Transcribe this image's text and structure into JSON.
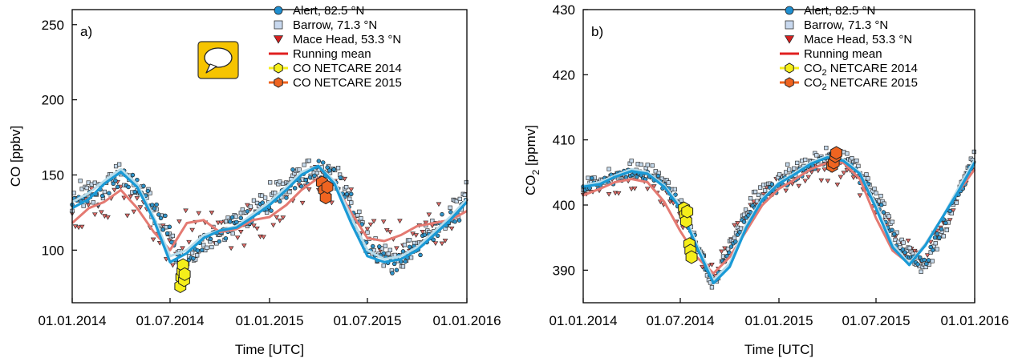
{
  "chart_data": [
    {
      "type": "scatter",
      "panel_label": "a)",
      "xlabel": "Time [UTC]",
      "ylabel": "CO [ppbv]",
      "ylim": [
        65,
        260
      ],
      "yticks": [
        100,
        150,
        200,
        250
      ],
      "xlim": [
        "2014-01-01",
        "2016-01-01"
      ],
      "xticks": [
        "01.01.2014",
        "01.07.2014",
        "01.01.2015",
        "01.07.2015",
        "01.01.2016"
      ],
      "legend_position": "top-right",
      "icon": "speech-bubble-icon",
      "legend": [
        {
          "label": "Alert, 82.5 °N",
          "marker": "circle",
          "color": "#1f8fd0"
        },
        {
          "label": "Barrow, 71.3 °N",
          "marker": "square",
          "color": "#c8d8ee"
        },
        {
          "label": "Mace Head, 53.3 °N",
          "marker": "triangle-down",
          "color": "#d42020"
        },
        {
          "label": "Running mean",
          "marker": "line",
          "color": "#e02020"
        },
        {
          "label": "CO NETCARE 2014",
          "marker": "hexagon",
          "color": "#f5ee1a"
        },
        {
          "label": "CO NETCARE 2015",
          "marker": "hexagon",
          "color": "#ef6420"
        }
      ],
      "series": [
        {
          "name": "Alert, 82.5 °N",
          "dates": [
            "2014-01-01",
            "2014-02-15",
            "2014-04-01",
            "2014-05-15",
            "2014-07-01",
            "2014-07-25",
            "2014-09-01",
            "2014-10-15",
            "2014-12-01",
            "2015-01-15",
            "2015-03-01",
            "2015-04-01",
            "2015-05-15",
            "2015-07-01",
            "2015-08-15",
            "2015-10-01",
            "2015-11-15",
            "2016-01-01"
          ],
          "values": [
            128,
            135,
            150,
            138,
            110,
            85,
            105,
            114,
            124,
            135,
            146,
            155,
            144,
            104,
            90,
            100,
            118,
            128
          ]
        },
        {
          "name": "Barrow, 71.3 °N",
          "dates": [
            "2014-01-01",
            "2014-02-15",
            "2014-04-01",
            "2014-05-15",
            "2014-07-01",
            "2014-07-25",
            "2014-09-01",
            "2014-10-15",
            "2014-12-01",
            "2015-01-15",
            "2015-03-01",
            "2015-04-01",
            "2015-05-15",
            "2015-07-01",
            "2015-08-15",
            "2015-10-01",
            "2015-11-15",
            "2016-01-01"
          ],
          "values": [
            132,
            140,
            152,
            137,
            107,
            88,
            107,
            115,
            126,
            138,
            150,
            156,
            146,
            105,
            92,
            103,
            120,
            135
          ]
        },
        {
          "name": "Mace Head, 53.3 °N",
          "dates": [
            "2014-01-01",
            "2014-02-15",
            "2014-04-01",
            "2014-05-15",
            "2014-07-01",
            "2014-08-01",
            "2014-09-01",
            "2014-10-15",
            "2014-12-01",
            "2015-01-15",
            "2015-03-01",
            "2015-04-01",
            "2015-05-15",
            "2015-07-01",
            "2015-08-15",
            "2015-10-01",
            "2015-11-15",
            "2016-01-01"
          ],
          "values": [
            120,
            130,
            140,
            120,
            100,
            118,
            120,
            112,
            118,
            128,
            140,
            148,
            138,
            112,
            105,
            112,
            118,
            125
          ]
        },
        {
          "name": "Running mean",
          "color": "#e47a72",
          "dates": [
            "2014-01-01",
            "2014-02-01",
            "2014-03-01",
            "2014-04-01",
            "2014-05-01",
            "2014-06-01",
            "2014-07-01",
            "2014-08-01",
            "2014-09-01",
            "2014-10-01",
            "2014-11-01",
            "2014-12-01",
            "2015-01-01",
            "2015-02-01",
            "2015-03-01",
            "2015-04-01",
            "2015-05-01",
            "2015-06-01",
            "2015-07-01",
            "2015-08-01",
            "2015-09-01",
            "2015-10-01",
            "2015-11-01",
            "2015-12-01",
            "2016-01-01"
          ],
          "values": [
            118,
            128,
            132,
            140,
            128,
            112,
            100,
            118,
            120,
            112,
            114,
            120,
            122,
            130,
            140,
            148,
            144,
            125,
            108,
            106,
            110,
            116,
            118,
            120,
            126
          ]
        },
        {
          "name": "Running mean",
          "color": "#b8dcea",
          "dates": [
            "2014-01-01",
            "2014-02-01",
            "2014-03-01",
            "2014-04-01",
            "2014-05-01",
            "2014-06-01",
            "2014-07-01",
            "2014-08-01",
            "2014-09-01",
            "2014-10-01",
            "2014-11-01",
            "2014-12-01",
            "2015-01-01",
            "2015-02-01",
            "2015-03-01",
            "2015-04-01",
            "2015-05-01",
            "2015-06-01",
            "2015-07-01",
            "2015-08-01",
            "2015-09-01",
            "2015-10-01",
            "2015-11-01",
            "2015-12-01",
            "2016-01-01"
          ],
          "values": [
            132,
            138,
            146,
            154,
            144,
            122,
            96,
            100,
            110,
            113,
            116,
            124,
            132,
            142,
            152,
            156,
            146,
            122,
            100,
            94,
            96,
            102,
            112,
            122,
            134
          ]
        },
        {
          "name": "Running mean",
          "color": "#1a9ad6",
          "dates": [
            "2014-01-01",
            "2014-02-01",
            "2014-03-01",
            "2014-04-01",
            "2014-05-01",
            "2014-06-01",
            "2014-07-01",
            "2014-08-01",
            "2014-09-01",
            "2014-10-01",
            "2014-11-01",
            "2014-12-01",
            "2015-01-01",
            "2015-02-01",
            "2015-03-01",
            "2015-04-01",
            "2015-05-01",
            "2015-06-01",
            "2015-07-01",
            "2015-08-01",
            "2015-09-01",
            "2015-10-01",
            "2015-11-01",
            "2015-12-01",
            "2016-01-01"
          ],
          "values": [
            128,
            134,
            144,
            152,
            142,
            120,
            92,
            98,
            108,
            113,
            115,
            122,
            130,
            140,
            150,
            156,
            144,
            118,
            96,
            92,
            94,
            100,
            110,
            120,
            132
          ]
        },
        {
          "name": "CO NETCARE 2014",
          "dates": [
            "2014-07-20",
            "2014-07-22",
            "2014-07-24",
            "2014-07-25",
            "2014-07-27",
            "2014-07-28"
          ],
          "values": [
            76,
            82,
            86,
            90,
            80,
            84
          ]
        },
        {
          "name": "CO NETCARE 2015",
          "dates": [
            "2015-04-08",
            "2015-04-12",
            "2015-04-15",
            "2015-04-18"
          ],
          "values": [
            145,
            140,
            135,
            142
          ]
        }
      ]
    },
    {
      "type": "scatter",
      "panel_label": "b)",
      "xlabel": "Time [UTC]",
      "ylabel": "CO2 [ppmv]",
      "ylim": [
        385,
        430
      ],
      "yticks": [
        390,
        400,
        410,
        420,
        430
      ],
      "xlim": [
        "2014-01-01",
        "2016-01-01"
      ],
      "xticks": [
        "01.01.2014",
        "01.07.2014",
        "01.01.2015",
        "01.07.2015",
        "01.01.2016"
      ],
      "legend_position": "top-right",
      "legend": [
        {
          "label": "Alert, 82.5 °N",
          "marker": "circle",
          "color": "#1f8fd0"
        },
        {
          "label": "Barrow, 71.3 °N",
          "marker": "square",
          "color": "#c8d8ee"
        },
        {
          "label": "Mace Head, 53.3 °N",
          "marker": "triangle-down",
          "color": "#d42020"
        },
        {
          "label": "Running mean",
          "marker": "line",
          "color": "#e02020"
        },
        {
          "label": "CO2 NETCARE 2014",
          "marker": "hexagon",
          "color": "#f5ee1a"
        },
        {
          "label": "CO2 NETCARE 2015",
          "marker": "hexagon",
          "color": "#ef6420"
        }
      ],
      "series": [
        {
          "name": "Alert, 82.5 °N",
          "dates": [
            "2014-01-01",
            "2014-02-15",
            "2014-04-01",
            "2014-05-15",
            "2014-07-01",
            "2014-08-01",
            "2014-09-01",
            "2014-10-01",
            "2014-11-15",
            "2015-01-01",
            "2015-02-15",
            "2015-04-01",
            "2015-05-15",
            "2015-07-01",
            "2015-08-15",
            "2015-10-01",
            "2015-11-15",
            "2016-01-01"
          ],
          "values": [
            402.5,
            403.5,
            405,
            404.5,
            400,
            394,
            388,
            393,
            400,
            403,
            405,
            407,
            406,
            401,
            393,
            391,
            399,
            407
          ]
        },
        {
          "name": "Barrow, 71.3 °N",
          "dates": [
            "2014-01-01",
            "2014-02-15",
            "2014-04-01",
            "2014-05-15",
            "2014-07-01",
            "2014-08-01",
            "2014-09-01",
            "2014-10-01",
            "2014-11-15",
            "2015-01-01",
            "2015-02-15",
            "2015-04-01",
            "2015-05-15",
            "2015-07-01",
            "2015-08-15",
            "2015-10-01",
            "2015-11-15",
            "2016-01-01"
          ],
          "values": [
            403,
            404,
            405.5,
            405,
            400.5,
            394,
            387.5,
            394,
            401,
            404,
            406,
            408,
            407,
            402,
            394,
            390,
            398,
            408
          ]
        },
        {
          "name": "Mace Head, 53.3 °N",
          "dates": [
            "2014-01-01",
            "2014-02-15",
            "2014-04-01",
            "2014-05-15",
            "2014-07-01",
            "2014-08-01",
            "2014-09-01",
            "2014-10-01",
            "2014-11-15",
            "2015-01-01",
            "2015-02-15",
            "2015-04-01",
            "2015-05-15",
            "2015-07-01",
            "2015-08-15",
            "2015-10-01",
            "2015-11-15",
            "2016-01-01"
          ],
          "values": [
            401,
            402.5,
            404,
            403,
            398,
            392,
            390,
            395,
            401,
            403,
            404,
            405,
            404,
            400,
            394,
            392,
            398,
            405
          ]
        },
        {
          "name": "Running mean",
          "color": "#e47a72",
          "dates": [
            "2014-01-01",
            "2014-02-01",
            "2014-03-01",
            "2014-04-01",
            "2014-05-01",
            "2014-06-01",
            "2014-07-01",
            "2014-08-01",
            "2014-09-01",
            "2014-10-01",
            "2014-11-01",
            "2014-12-01",
            "2015-01-01",
            "2015-02-01",
            "2015-03-01",
            "2015-04-01",
            "2015-05-01",
            "2015-06-01",
            "2015-07-01",
            "2015-08-01",
            "2015-09-01",
            "2015-10-01",
            "2015-11-01",
            "2015-12-01",
            "2016-01-01"
          ],
          "values": [
            401.5,
            402.5,
            403.5,
            404,
            403.5,
            400.5,
            396,
            392,
            389.5,
            392,
            396,
            400,
            402.5,
            404,
            405.5,
            406.5,
            406.5,
            404,
            398,
            393,
            391,
            394,
            398,
            402,
            405.5
          ]
        },
        {
          "name": "Running mean",
          "color": "#b8dcea",
          "dates": [
            "2014-01-01",
            "2014-02-01",
            "2014-03-01",
            "2014-04-01",
            "2014-05-01",
            "2014-06-01",
            "2014-07-01",
            "2014-08-01",
            "2014-09-01",
            "2014-10-01",
            "2014-11-01",
            "2014-12-01",
            "2015-01-01",
            "2015-02-01",
            "2015-03-01",
            "2015-04-01",
            "2015-05-01",
            "2015-06-01",
            "2015-07-01",
            "2015-08-01",
            "2015-09-01",
            "2015-10-01",
            "2015-11-01",
            "2015-12-01",
            "2016-01-01"
          ],
          "values": [
            403,
            403.5,
            404.5,
            405.5,
            405,
            403,
            400,
            394,
            388.5,
            391,
            397,
            401,
            403.5,
            405,
            406.5,
            407.5,
            407,
            405,
            400,
            394,
            391,
            394,
            398,
            402.5,
            407
          ]
        },
        {
          "name": "Running mean",
          "color": "#1a9ad6",
          "dates": [
            "2014-01-01",
            "2014-02-01",
            "2014-03-01",
            "2014-04-01",
            "2014-05-01",
            "2014-06-01",
            "2014-07-01",
            "2014-08-01",
            "2014-09-01",
            "2014-10-01",
            "2014-11-01",
            "2014-12-01",
            "2015-01-01",
            "2015-02-01",
            "2015-03-01",
            "2015-04-01",
            "2015-05-01",
            "2015-06-01",
            "2015-07-01",
            "2015-08-01",
            "2015-09-01",
            "2015-10-01",
            "2015-11-01",
            "2015-12-01",
            "2016-01-01"
          ],
          "values": [
            402.8,
            403.2,
            404.3,
            405.2,
            404.8,
            402.8,
            399.5,
            393.5,
            388,
            390.5,
            396.5,
            400.8,
            403.3,
            404.8,
            406.3,
            407.3,
            406.8,
            404.8,
            399.5,
            393.5,
            390.8,
            393.8,
            398,
            402,
            406.5
          ]
        },
        {
          "name": "CO2 NETCARE 2014",
          "dates": [
            "2014-07-08",
            "2014-07-10",
            "2014-07-12",
            "2014-07-14",
            "2014-07-18",
            "2014-07-20",
            "2014-07-22"
          ],
          "values": [
            399.5,
            398.5,
            397.5,
            399,
            394,
            393,
            392
          ]
        },
        {
          "name": "CO2 NETCARE 2015",
          "dates": [
            "2015-04-10",
            "2015-04-13",
            "2015-04-16",
            "2015-04-18"
          ],
          "values": [
            406,
            406.5,
            407.5,
            408
          ]
        }
      ]
    }
  ]
}
